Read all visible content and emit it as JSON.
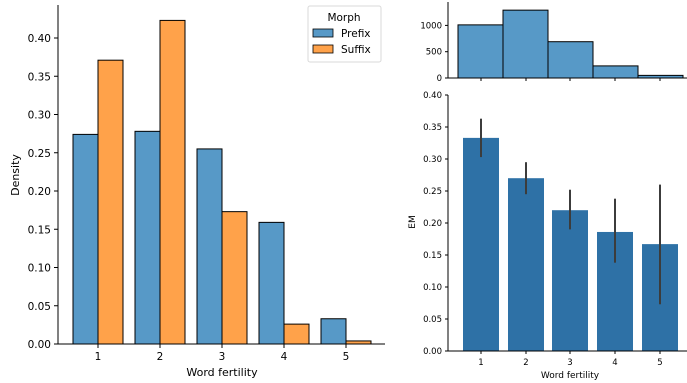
{
  "colors": {
    "prefix": "#5799c7",
    "suffix": "#ffa24a",
    "em_bar": "#2e71a6",
    "count_bar": "#5799c7",
    "error": "#3c3c3c",
    "edge": "#000000"
  },
  "chart_data": [
    {
      "id": "density",
      "type": "bar",
      "xlabel": "Word fertility",
      "ylabel": "Density",
      "categories": [
        "1",
        "2",
        "3",
        "4",
        "5"
      ],
      "series": [
        {
          "name": "Prefix",
          "values": [
            0.274,
            0.278,
            0.255,
            0.159,
            0.033
          ]
        },
        {
          "name": "Suffix",
          "values": [
            0.371,
            0.423,
            0.173,
            0.026,
            0.004
          ]
        }
      ],
      "ylim": [
        0,
        0.44
      ],
      "yticks": [
        "0.00",
        "0.05",
        "0.10",
        "0.15",
        "0.20",
        "0.25",
        "0.30",
        "0.35",
        "0.40"
      ],
      "legend": {
        "title": "Morph",
        "placement": "top-right"
      },
      "grid": false
    },
    {
      "id": "counts",
      "type": "bar",
      "categories": [
        "1",
        "2",
        "3",
        "4",
        "5"
      ],
      "values": [
        1010,
        1290,
        690,
        230,
        50
      ],
      "ylim": [
        0,
        1400
      ],
      "yticks": [
        "0",
        "500",
        "1000"
      ],
      "grid": false
    },
    {
      "id": "em",
      "type": "bar",
      "xlabel": "Word fertility",
      "ylabel": "EM",
      "categories": [
        "1",
        "2",
        "3",
        "4",
        "5"
      ],
      "values": [
        0.333,
        0.27,
        0.22,
        0.186,
        0.167
      ],
      "error_low": [
        0.303,
        0.245,
        0.19,
        0.138,
        0.073
      ],
      "error_high": [
        0.363,
        0.295,
        0.252,
        0.238,
        0.26
      ],
      "ylim": [
        0,
        0.4
      ],
      "yticks": [
        "0.00",
        "0.05",
        "0.10",
        "0.15",
        "0.20",
        "0.25",
        "0.30",
        "0.35",
        "0.40"
      ],
      "grid": false
    }
  ]
}
